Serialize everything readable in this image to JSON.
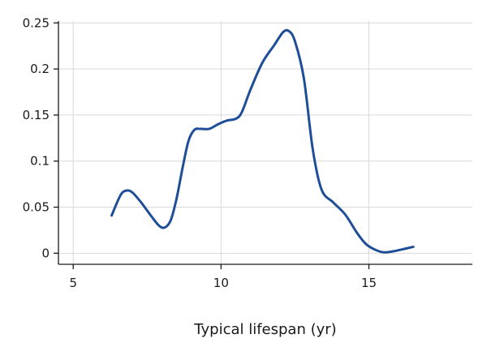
{
  "chart_data": {
    "type": "line",
    "xlabel": "Typical lifespan (yr)",
    "ylabel": "",
    "xlim": [
      4.5,
      18.5
    ],
    "ylim": [
      -0.012,
      0.252
    ],
    "x_ticks": [
      5,
      10,
      15
    ],
    "x_tick_labels": [
      "5",
      "10",
      "15"
    ],
    "y_ticks": [
      0,
      0.05,
      0.1,
      0.15,
      0.2,
      0.25
    ],
    "y_tick_labels": [
      "0",
      "0.05",
      "0.1",
      "0.15",
      "0.2",
      "0.25"
    ],
    "grid": true,
    "colors": {
      "line": "#1f4e99",
      "grid": "#d9d9d9",
      "axis": "#1a1a1a"
    },
    "series": [
      {
        "x": [
          6.3,
          6.6,
          6.8,
          7.0,
          7.3,
          7.6,
          7.9,
          8.1,
          8.3,
          8.5,
          8.7,
          8.9,
          9.1,
          9.3,
          9.6,
          9.9,
          10.2,
          10.5,
          10.7,
          11.0,
          11.4,
          11.8,
          12.1,
          12.3,
          12.5,
          12.8,
          13.1,
          13.4,
          13.8,
          14.2,
          14.6,
          14.9,
          15.2,
          15.5,
          15.8,
          16.1,
          16.5
        ],
        "y": [
          0.041,
          0.063,
          0.068,
          0.066,
          0.055,
          0.042,
          0.03,
          0.028,
          0.036,
          0.06,
          0.093,
          0.122,
          0.134,
          0.135,
          0.135,
          0.14,
          0.144,
          0.146,
          0.153,
          0.178,
          0.207,
          0.226,
          0.24,
          0.241,
          0.23,
          0.19,
          0.113,
          0.069,
          0.055,
          0.042,
          0.022,
          0.01,
          0.004,
          0.001,
          0.002,
          0.004,
          0.007
        ]
      }
    ]
  }
}
